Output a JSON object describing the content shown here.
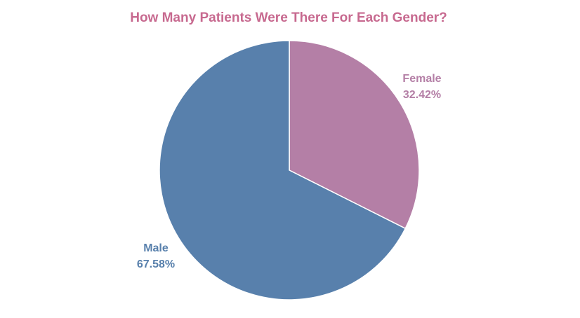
{
  "chart_data": {
    "type": "pie",
    "title": "How Many Patients Were There For Each Gender?",
    "title_color": "#c7698f",
    "slices": [
      {
        "label": "Female",
        "value": 32.42,
        "value_label": "32.42%",
        "color": "#b47fa6"
      },
      {
        "label": "Male",
        "value": 67.58,
        "value_label": "67.58%",
        "color": "#5880ac"
      }
    ],
    "start_angle_deg": 0,
    "direction": "clockwise",
    "slice_border_color": "#ffffff",
    "legend": "none",
    "label_placement": "outside"
  }
}
